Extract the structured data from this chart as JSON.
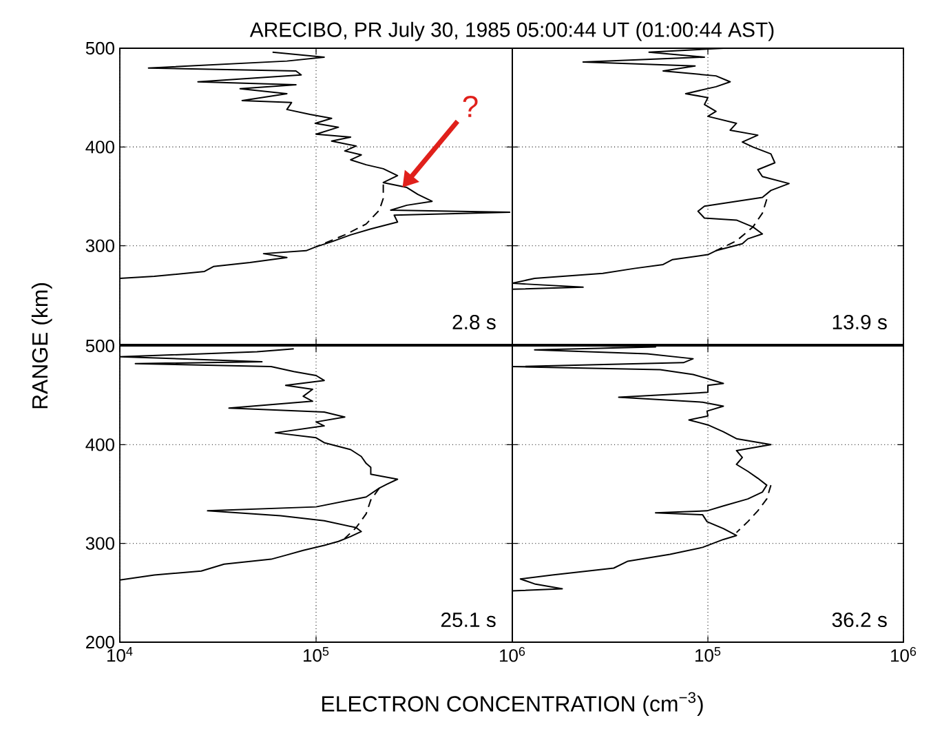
{
  "chart_data": [
    {
      "type": "line",
      "title": "ARECIBO, PR    July 30, 1985    05:00:44 UT    (01:00:44 AST)",
      "log": "x",
      "grid": true,
      "tick_labels": "y",
      "xlim": [
        10000,
        1000000
      ],
      "ylim": [
        200,
        500
      ],
      "xticks": [
        {
          "value": 10000,
          "label": null
        },
        {
          "value": 100000,
          "label": null
        },
        {
          "value": 1000000,
          "label": null
        }
      ],
      "yticks": [
        {
          "value": 200,
          "label": null
        },
        300,
        400,
        500
      ],
      "annotations": [
        "2.8 s",
        "?"
      ],
      "series": [
        {
          "color": "#000000",
          "line_style": "solid",
          "x": [
            60000,
            110000,
            71000,
            14000,
            79000,
            84000,
            25000,
            79000,
            41000,
            71000,
            42000,
            75000,
            71000,
            93000,
            120000,
            99000,
            130000,
            100000,
            150000,
            120000,
            160000,
            140000,
            170000,
            150000,
            180000,
            220000,
            260000,
            220000,
            290000,
            330000,
            390000,
            290000,
            240000,
            970000,
            250000,
            260000,
            190000,
            150000,
            120000,
            100000,
            89000,
            54000,
            71000,
            46000,
            30000,
            27000,
            15000,
            10000
          ],
          "values": [
            496,
            491,
            487,
            480,
            477,
            473,
            466,
            463,
            459,
            454,
            447,
            445,
            438,
            433,
            429,
            424,
            420,
            413,
            410,
            406,
            401,
            396,
            392,
            387,
            382,
            378,
            371,
            364,
            359,
            352,
            345,
            341,
            336,
            334,
            331,
            324,
            317,
            311,
            304,
            299,
            295,
            292,
            288,
            283,
            279,
            274,
            269,
            267
          ]
        },
        {
          "color": "#000000",
          "line_style": "dashed",
          "x": [
            220000,
            220000,
            210000,
            180000,
            140000,
            100000
          ],
          "values": [
            362,
            348,
            336,
            322,
            311,
            299
          ]
        }
      ]
    },
    {
      "type": "line",
      "log": "x",
      "grid": true,
      "tick_labels": false,
      "xlim": [
        10000,
        1000000
      ],
      "ylim": [
        200,
        500
      ],
      "xticks": [
        {
          "value": 10000,
          "label": null
        },
        {
          "value": 100000,
          "label": null
        },
        {
          "value": 1000000,
          "label": null
        }
      ],
      "yticks": [
        {
          "value": 200,
          "label": null
        },
        {
          "value": 300,
          "label": null
        },
        {
          "value": 400,
          "label": null
        },
        {
          "value": 500,
          "label": null
        }
      ],
      "annotations": [
        "13.9 s"
      ],
      "series": [
        {
          "color": "#000000",
          "line_style": "solid",
          "x": [
            120000,
            50000,
            96000,
            23000,
            86000,
            59000,
            110000,
            130000,
            110000,
            77000,
            100000,
            96000,
            110000,
            100000,
            140000,
            130000,
            180000,
            150000,
            170000,
            210000,
            220000,
            180000,
            190000,
            260000,
            210000,
            190000,
            96000,
            89000,
            96000,
            140000,
            170000,
            190000,
            160000,
            150000,
            110000,
            100000,
            66000,
            59000,
            42000,
            29000,
            13000,
            10000,
            23000,
            10000
          ],
          "values": [
            500,
            496,
            491,
            486,
            482,
            477,
            472,
            466,
            461,
            454,
            450,
            443,
            436,
            431,
            424,
            417,
            412,
            405,
            400,
            393,
            384,
            377,
            370,
            363,
            356,
            349,
            340,
            335,
            328,
            326,
            319,
            312,
            307,
            302,
            295,
            291,
            286,
            281,
            277,
            272,
            267,
            262,
            258,
            256
          ]
        },
        {
          "color": "#000000",
          "line_style": "dashed",
          "x": [
            200000,
            190000,
            170000,
            140000,
            110000
          ],
          "values": [
            347,
            333,
            319,
            305,
            295
          ]
        }
      ]
    },
    {
      "type": "line",
      "xlabel": "ELECTRON CONCENTRATION (cm$^{−3}$)",
      "ylabel": "RANGE (km)",
      "log": "x",
      "grid": true,
      "xlim": [
        10000,
        1000000
      ],
      "ylim": [
        200,
        500
      ],
      "xticks": [
        {
          "value": 10000,
          "label": "10$^{4}$"
        },
        {
          "value": 100000,
          "label": "10$^{5}$"
        },
        {
          "value": 1000000,
          "label": "10$^{6}$"
        }
      ],
      "yticks": [
        200,
        300,
        400,
        500
      ],
      "annotations": [
        "25.1 s"
      ],
      "series": [
        {
          "color": "#000000",
          "line_style": "solid",
          "x": [
            77000,
            50000,
            10000,
            53000,
            12000,
            59000,
            77000,
            100000,
            110000,
            70000,
            96000,
            86000,
            96000,
            36000,
            110000,
            140000,
            100000,
            110000,
            62000,
            100000,
            110000,
            150000,
            170000,
            180000,
            190000,
            190000,
            260000,
            230000,
            210000,
            180000,
            100000,
            28000,
            66000,
            110000,
            160000,
            170000,
            150000,
            130000,
            110000,
            86000,
            70000,
            59000,
            34000,
            26000,
            15000,
            10000
          ],
          "values": [
            497,
            494,
            489,
            484,
            482,
            479,
            474,
            470,
            465,
            460,
            456,
            449,
            444,
            437,
            433,
            428,
            423,
            419,
            412,
            407,
            402,
            395,
            388,
            381,
            377,
            370,
            365,
            360,
            356,
            347,
            337,
            333,
            328,
            323,
            316,
            312,
            307,
            302,
            298,
            293,
            288,
            284,
            279,
            272,
            268,
            263
          ]
        },
        {
          "color": "#000000",
          "line_style": "dashed",
          "x": [
            210000,
            190000,
            180000,
            160000,
            140000
          ],
          "values": [
            356,
            344,
            330,
            316,
            305
          ]
        }
      ]
    },
    {
      "type": "line",
      "log": "x",
      "grid": true,
      "tick_labels": "x",
      "xlim": [
        10000,
        1000000
      ],
      "ylim": [
        200,
        500
      ],
      "xticks": [
        {
          "value": 10000,
          "label": null
        },
        {
          "value": 100000,
          "label": "10$^{5}$"
        },
        {
          "value": 1000000,
          "label": "10$^{6}$"
        }
      ],
      "yticks": [
        {
          "value": 200,
          "label": null
        },
        {
          "value": 300,
          "label": null
        },
        {
          "value": 400,
          "label": null
        },
        {
          "value": 500,
          "label": null
        }
      ],
      "annotations": [
        "36.2 s"
      ],
      "series": [
        {
          "color": "#000000",
          "line_style": "solid",
          "x": [
            28000,
            54000,
            13000,
            49000,
            84000,
            75000,
            10000,
            57000,
            84000,
            99000,
            120000,
            100000,
            100000,
            35000,
            94000,
            120000,
            99000,
            100000,
            80000,
            100000,
            120000,
            140000,
            210000,
            140000,
            150000,
            140000,
            160000,
            180000,
            200000,
            190000,
            160000,
            120000,
            99000,
            54000,
            94000,
            99000,
            120000,
            140000,
            120000,
            94000,
            64000,
            39000,
            33000,
            16000,
            11000,
            13000,
            18000,
            10000
          ],
          "values": [
            500,
            499,
            496,
            492,
            487,
            483,
            479,
            476,
            471,
            467,
            462,
            460,
            453,
            448,
            443,
            439,
            434,
            429,
            425,
            420,
            413,
            406,
            400,
            394,
            387,
            380,
            373,
            366,
            359,
            352,
            345,
            338,
            333,
            331,
            329,
            322,
            315,
            308,
            304,
            296,
            289,
            282,
            275,
            268,
            264,
            259,
            254,
            252
          ]
        },
        {
          "color": "#000000",
          "line_style": "dashed",
          "x": [
            210000,
            200000,
            180000,
            160000,
            140000
          ],
          "values": [
            359,
            345,
            333,
            322,
            311
          ]
        }
      ]
    }
  ]
}
